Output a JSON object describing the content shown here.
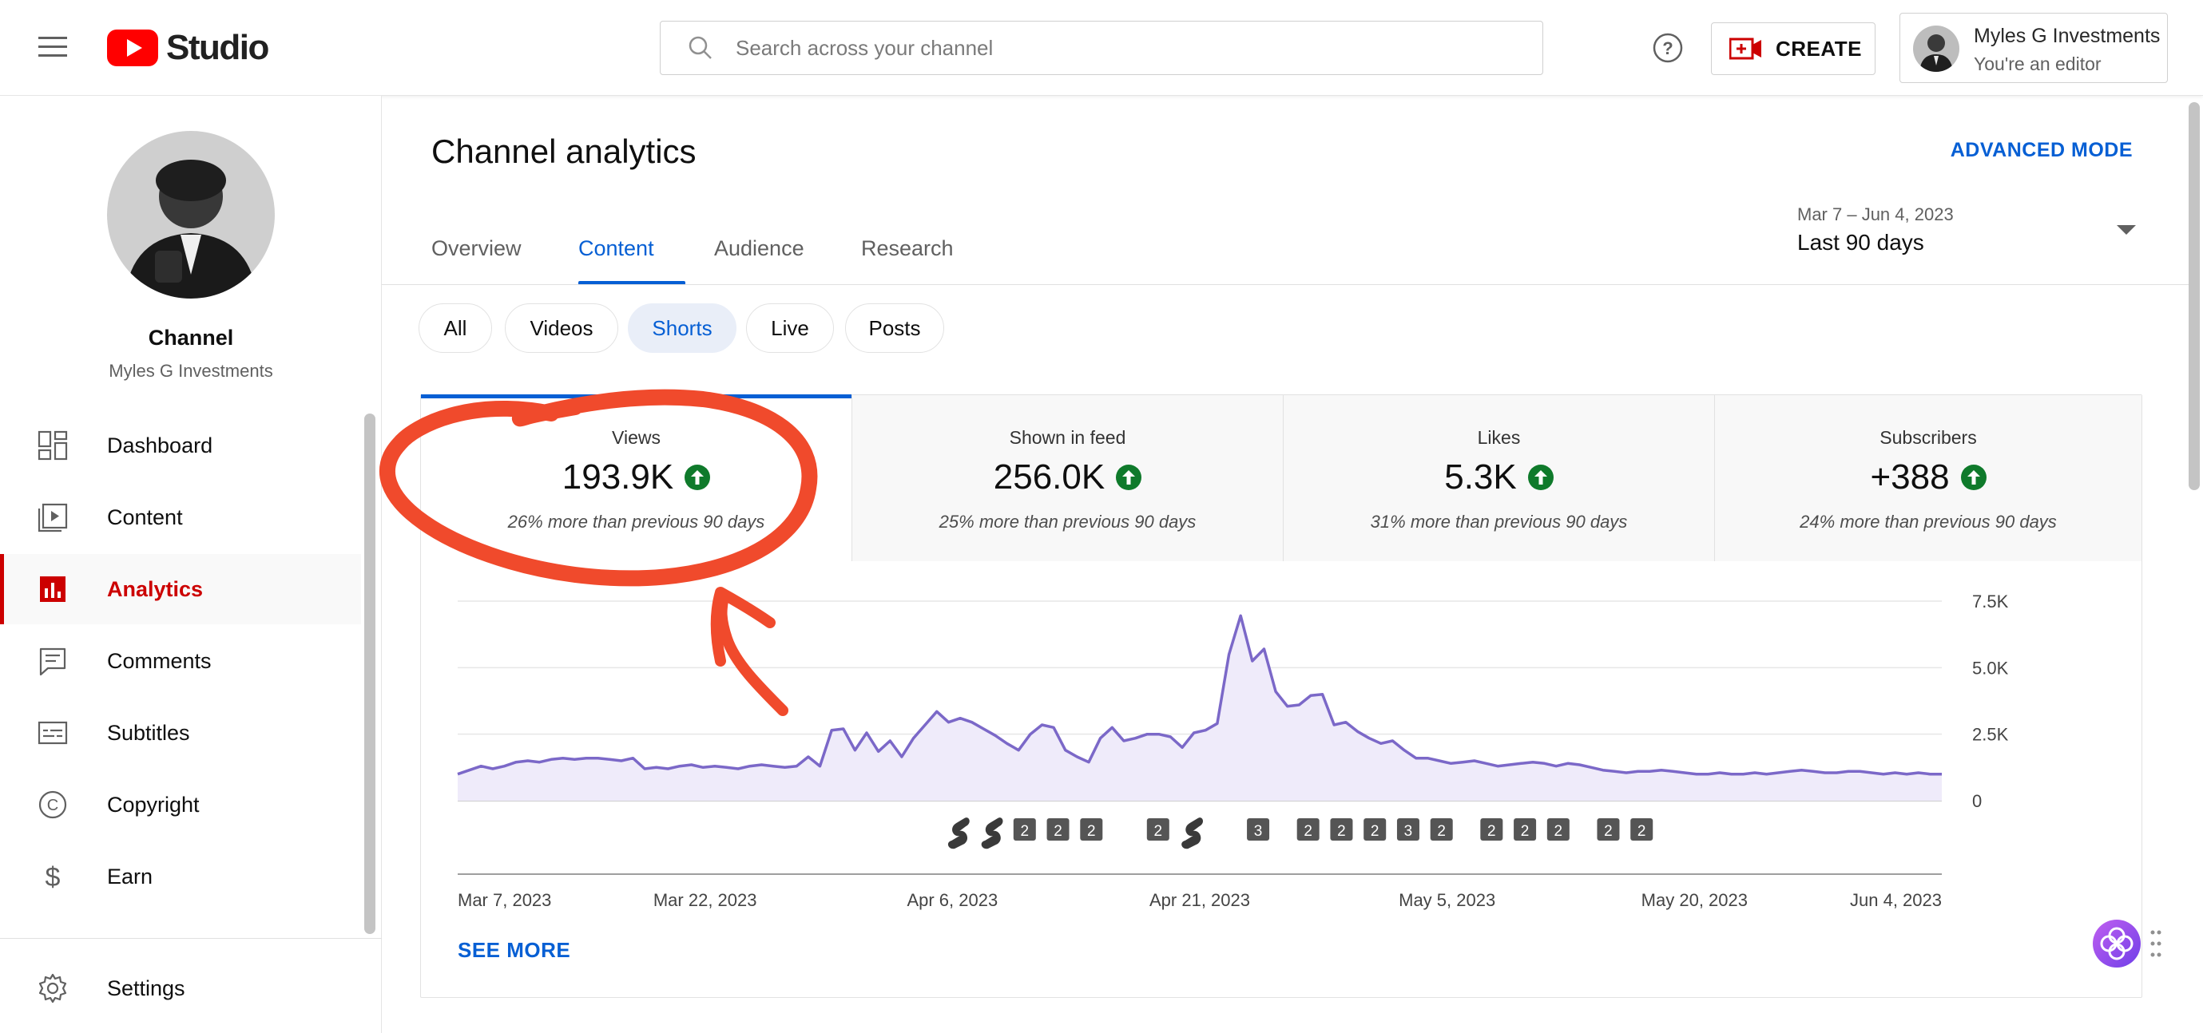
{
  "header": {
    "logo_text": "Studio",
    "search_placeholder": "Search across your channel",
    "create_label": "CREATE",
    "account_name": "Myles G Investments",
    "account_role": "You're an editor"
  },
  "sidebar": {
    "channel_label": "Channel",
    "channel_name": "Myles G Investments",
    "items": [
      {
        "label": "Dashboard",
        "icon": "dashboard-icon"
      },
      {
        "label": "Content",
        "icon": "content-icon"
      },
      {
        "label": "Analytics",
        "icon": "analytics-icon",
        "active": true
      },
      {
        "label": "Comments",
        "icon": "comments-icon"
      },
      {
        "label": "Subtitles",
        "icon": "subtitles-icon"
      },
      {
        "label": "Copyright",
        "icon": "copyright-icon"
      },
      {
        "label": "Earn",
        "icon": "earn-icon"
      }
    ],
    "settings_label": "Settings"
  },
  "main": {
    "title": "Channel analytics",
    "advanced_mode": "ADVANCED MODE",
    "tabs": [
      "Overview",
      "Content",
      "Audience",
      "Research"
    ],
    "active_tab": "Content",
    "date_range": {
      "dates": "Mar 7 – Jun 4, 2023",
      "period": "Last 90 days"
    },
    "chips": [
      "All",
      "Videos",
      "Shorts",
      "Live",
      "Posts"
    ],
    "active_chip": "Shorts",
    "metrics": [
      {
        "title": "Views",
        "value": "193.9K",
        "change": "26% more than previous 90 days"
      },
      {
        "title": "Shown in feed",
        "value": "256.0K",
        "change": "25% more than previous 90 days"
      },
      {
        "title": "Likes",
        "value": "5.3K",
        "change": "31% more than previous 90 days"
      },
      {
        "title": "Subscribers",
        "value": "+388",
        "change": "24% more than previous 90 days"
      }
    ],
    "see_more": "SEE MORE"
  },
  "colors": {
    "accent": "#065fd4",
    "youtube_red": "#ff0000",
    "active_nav": "#cc0000",
    "line": "#7b68c8",
    "area": "#efebfa",
    "up_badge": "#0f7a2b",
    "annotation": "#f04a2c"
  },
  "chart_data": {
    "type": "area",
    "series": [
      {
        "values": [
          1000,
          1150,
          1300,
          1200,
          1300,
          1450,
          1500,
          1450,
          1550,
          1600,
          1550,
          1600,
          1600,
          1550,
          1500,
          1600,
          1200,
          1250,
          1200,
          1300,
          1350,
          1250,
          1300,
          1250,
          1200,
          1300,
          1350,
          1300,
          1250,
          1300,
          1650,
          1300,
          2650,
          2700,
          1900,
          2550,
          1850,
          2250,
          1650,
          2350,
          2850,
          3350,
          2950,
          3100,
          2950,
          2700,
          2450,
          2150,
          1900,
          2500,
          2850,
          2750,
          1900,
          1650,
          1450,
          2350,
          2750,
          2250,
          2350,
          2500,
          2500,
          2400,
          2000,
          2550,
          2650,
          2900,
          5500,
          6950,
          5250,
          5700,
          4100,
          3550,
          3600,
          3950,
          4000,
          2850,
          2950,
          2600,
          2350,
          2150,
          2250,
          1900,
          1600,
          1600,
          1500,
          1400,
          1450,
          1500,
          1400,
          1300,
          1350,
          1400,
          1450,
          1400,
          1300,
          1400,
          1350,
          1250,
          1150,
          1100,
          1050,
          1100,
          1100,
          1150,
          1100,
          1050,
          1000,
          1000,
          1050,
          1000,
          1000,
          1050,
          1000,
          1050,
          1100,
          1150,
          1100,
          1050,
          1050,
          1100,
          1100,
          1050,
          1000,
          1050,
          1000,
          1050,
          1000,
          1000
        ]
      }
    ],
    "x_tick_labels": [
      "Mar 7, 2023",
      "Mar 22, 2023",
      "Apr 6, 2023",
      "Apr 21, 2023",
      "May 5, 2023",
      "May 20, 2023",
      "Jun 4, 2023"
    ],
    "y_tick_labels": [
      "0",
      "2.5K",
      "5.0K",
      "7.5K"
    ],
    "ylim": [
      0,
      7500
    ],
    "grid": true,
    "markers": [
      {
        "date": "Apr 6, 2023",
        "label": "s"
      },
      {
        "date": "Apr 8, 2023",
        "label": "s"
      },
      {
        "date": "Apr 10, 2023",
        "label": "2"
      },
      {
        "date": "Apr 12, 2023",
        "label": "2"
      },
      {
        "date": "Apr 14, 2023",
        "label": "2"
      },
      {
        "date": "Apr 18, 2023",
        "label": "2"
      },
      {
        "date": "Apr 20, 2023",
        "label": "s"
      },
      {
        "date": "Apr 24, 2023",
        "label": "3"
      },
      {
        "date": "Apr 27, 2023",
        "label": "2"
      },
      {
        "date": "Apr 29, 2023",
        "label": "2"
      },
      {
        "date": "May 1, 2023",
        "label": "2"
      },
      {
        "date": "May 3, 2023",
        "label": "3"
      },
      {
        "date": "May 5, 2023",
        "label": "2"
      },
      {
        "date": "May 8, 2023",
        "label": "2"
      },
      {
        "date": "May 10, 2023",
        "label": "2"
      },
      {
        "date": "May 12, 2023",
        "label": "2"
      },
      {
        "date": "May 15, 2023",
        "label": "2"
      },
      {
        "date": "May 17, 2023",
        "label": "2"
      }
    ]
  }
}
